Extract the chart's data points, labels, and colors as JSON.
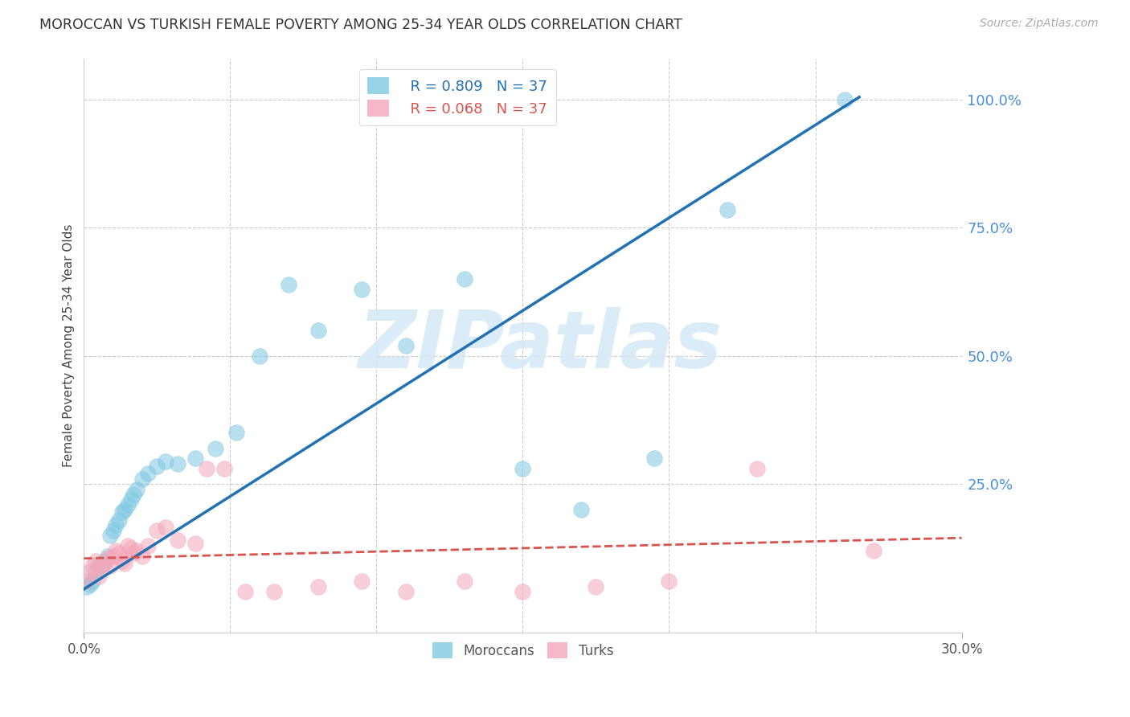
{
  "title": "MOROCCAN VS TURKISH FEMALE POVERTY AMONG 25-34 YEAR OLDS CORRELATION CHART",
  "source": "Source: ZipAtlas.com",
  "ylabel": "Female Poverty Among 25-34 Year Olds",
  "xlim": [
    0.0,
    0.3
  ],
  "ylim": [
    -0.04,
    1.08
  ],
  "moroccan_R": "R = 0.809",
  "moroccan_N": "N = 37",
  "turkish_R": "R = 0.068",
  "turkish_N": "N = 37",
  "moroccan_color": "#7ec8e3",
  "turkish_color": "#f4a7b9",
  "moroccan_line_color": "#2271b3",
  "turkish_line_color": "#d9534f",
  "watermark_text": "ZIPatlas",
  "watermark_color": "#d6eaf8",
  "ytick_labels": [
    "100.0%",
    "75.0%",
    "50.0%",
    "25.0%"
  ],
  "ytick_values": [
    1.0,
    0.75,
    0.5,
    0.25
  ],
  "ytick_color": "#4a90d9",
  "bottom_legend_labels": [
    "Moroccans",
    "Turks"
  ],
  "moroccan_x": [
    0.001,
    0.002,
    0.003,
    0.004,
    0.005,
    0.006,
    0.007,
    0.008,
    0.009,
    0.01,
    0.011,
    0.012,
    0.013,
    0.014,
    0.015,
    0.016,
    0.017,
    0.018,
    0.02,
    0.022,
    0.025,
    0.028,
    0.032,
    0.038,
    0.045,
    0.052,
    0.06,
    0.07,
    0.08,
    0.095,
    0.11,
    0.13,
    0.15,
    0.17,
    0.195,
    0.22,
    0.26
  ],
  "moroccan_y": [
    0.05,
    0.055,
    0.06,
    0.08,
    0.09,
    0.095,
    0.1,
    0.11,
    0.15,
    0.16,
    0.17,
    0.18,
    0.195,
    0.2,
    0.21,
    0.22,
    0.23,
    0.24,
    0.26,
    0.27,
    0.285,
    0.295,
    0.29,
    0.3,
    0.32,
    0.35,
    0.5,
    0.64,
    0.55,
    0.63,
    0.52,
    0.65,
    0.28,
    0.2,
    0.3,
    0.785,
    1.0
  ],
  "turkish_x": [
    0.001,
    0.002,
    0.003,
    0.004,
    0.005,
    0.006,
    0.007,
    0.008,
    0.009,
    0.01,
    0.011,
    0.012,
    0.013,
    0.014,
    0.015,
    0.016,
    0.017,
    0.018,
    0.02,
    0.022,
    0.025,
    0.028,
    0.032,
    0.038,
    0.042,
    0.048,
    0.055,
    0.065,
    0.08,
    0.095,
    0.11,
    0.13,
    0.15,
    0.175,
    0.2,
    0.23,
    0.27
  ],
  "turkish_y": [
    0.06,
    0.08,
    0.09,
    0.1,
    0.07,
    0.085,
    0.095,
    0.105,
    0.09,
    0.11,
    0.12,
    0.115,
    0.1,
    0.095,
    0.13,
    0.125,
    0.115,
    0.12,
    0.11,
    0.13,
    0.16,
    0.165,
    0.14,
    0.135,
    0.28,
    0.28,
    0.04,
    0.04,
    0.05,
    0.06,
    0.04,
    0.06,
    0.04,
    0.05,
    0.06,
    0.28,
    0.12
  ],
  "moroccan_line_x": [
    0.0,
    0.265
  ],
  "moroccan_line_y": [
    0.045,
    1.005
  ],
  "turkish_line_x": [
    0.0,
    0.3
  ],
  "turkish_line_y": [
    0.105,
    0.145
  ]
}
